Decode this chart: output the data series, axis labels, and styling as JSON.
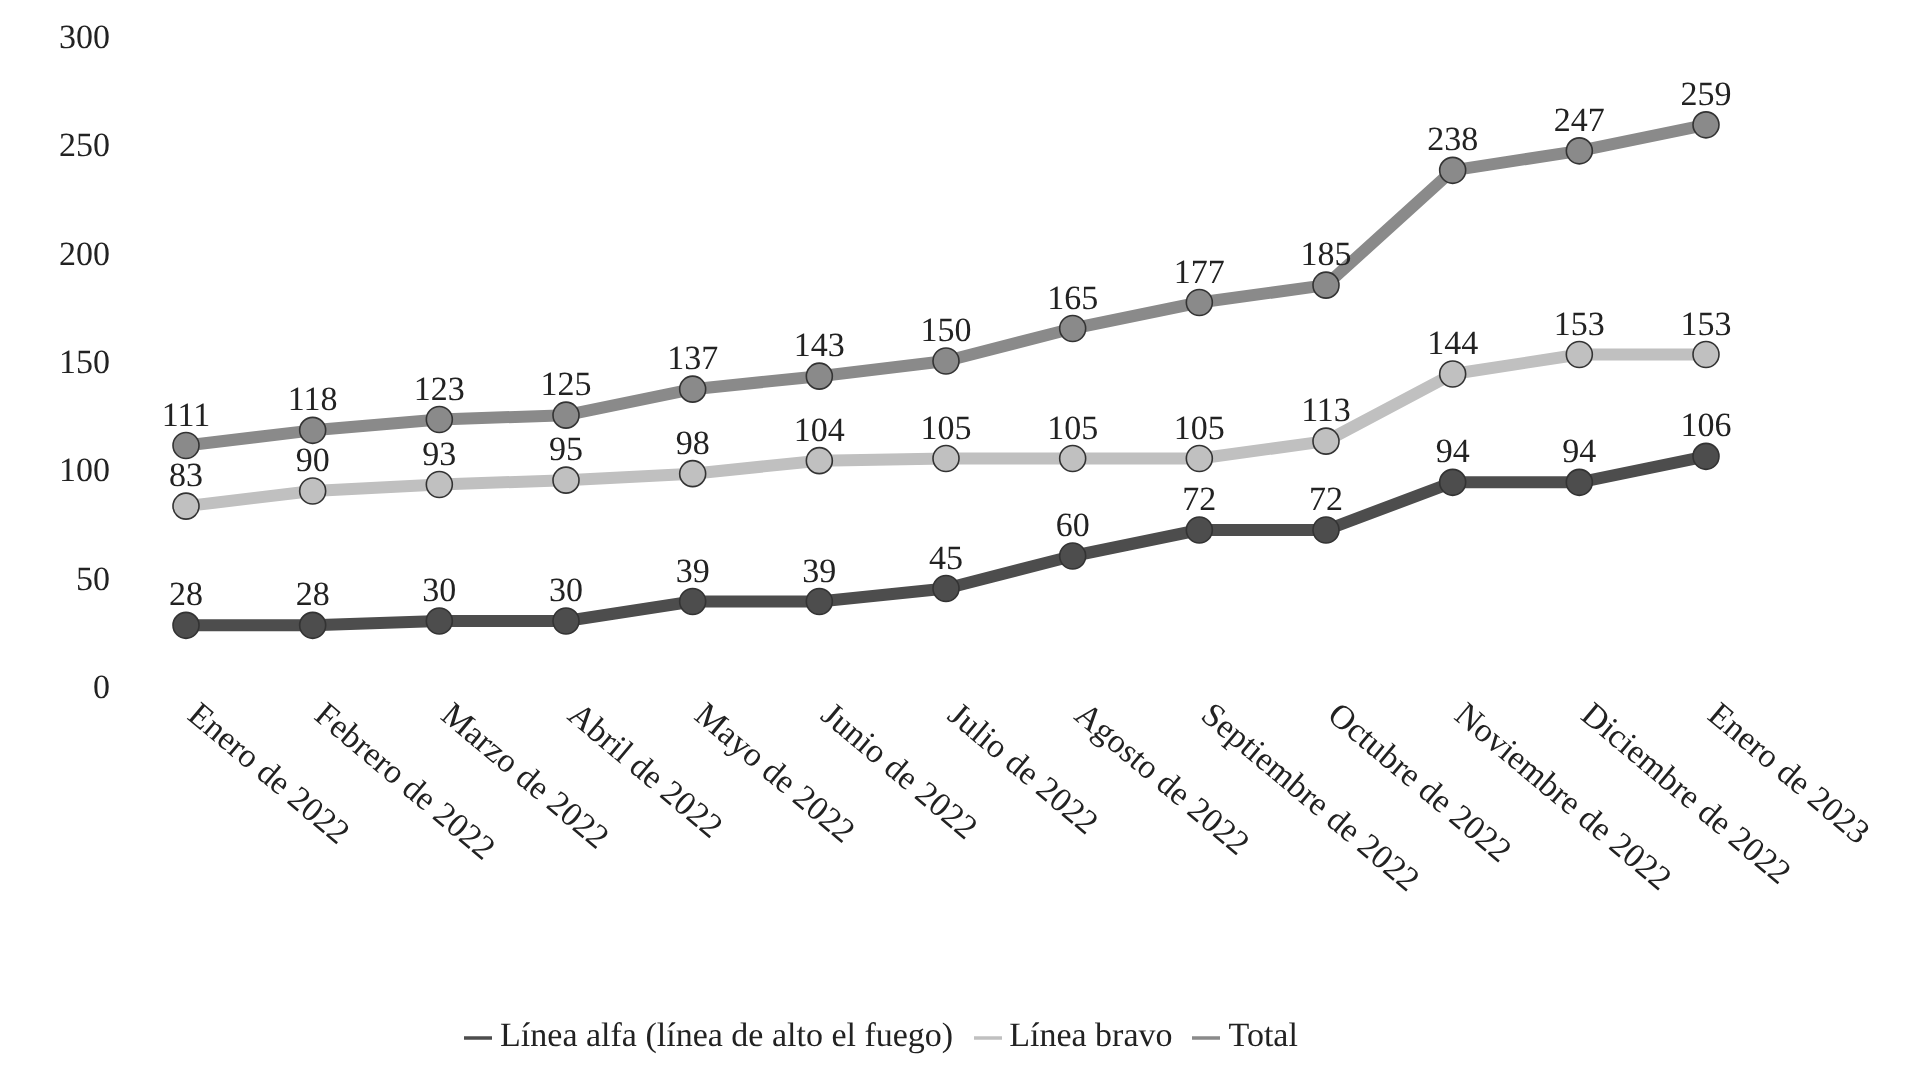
{
  "chart_data": {
    "type": "line",
    "categories": [
      "Enero de 2022",
      "Febrero de 2022",
      "Marzo de 2022",
      "Abril de 2022",
      "Mayo de 2022",
      "Junio de 2022",
      "Julio de 2022",
      "Agosto de 2022",
      "Septiembre de 2022",
      "Octubre de 2022",
      "Noviembre de 2022",
      "Diciembre de 2022",
      "Enero de 2023"
    ],
    "series": [
      {
        "name": "Línea alfa (línea de alto el fuego)",
        "color": "#4d4d4d",
        "values": [
          28,
          28,
          30,
          30,
          39,
          39,
          45,
          60,
          72,
          72,
          94,
          94,
          106
        ]
      },
      {
        "name": "Línea bravo",
        "color": "#c0c0c0",
        "values": [
          83,
          90,
          93,
          95,
          98,
          104,
          105,
          105,
          105,
          113,
          144,
          153,
          153
        ]
      },
      {
        "name": "Total",
        "color": "#8a8a8a",
        "values": [
          111,
          118,
          123,
          125,
          137,
          143,
          150,
          165,
          177,
          185,
          238,
          247,
          259
        ]
      }
    ],
    "ylim": [
      0,
      300
    ],
    "yticks": [
      0,
      50,
      100,
      150,
      200,
      250,
      300
    ],
    "grid": false,
    "legend": "bottom",
    "marker": "circle",
    "line_style": "solid",
    "data_labels": true
  }
}
